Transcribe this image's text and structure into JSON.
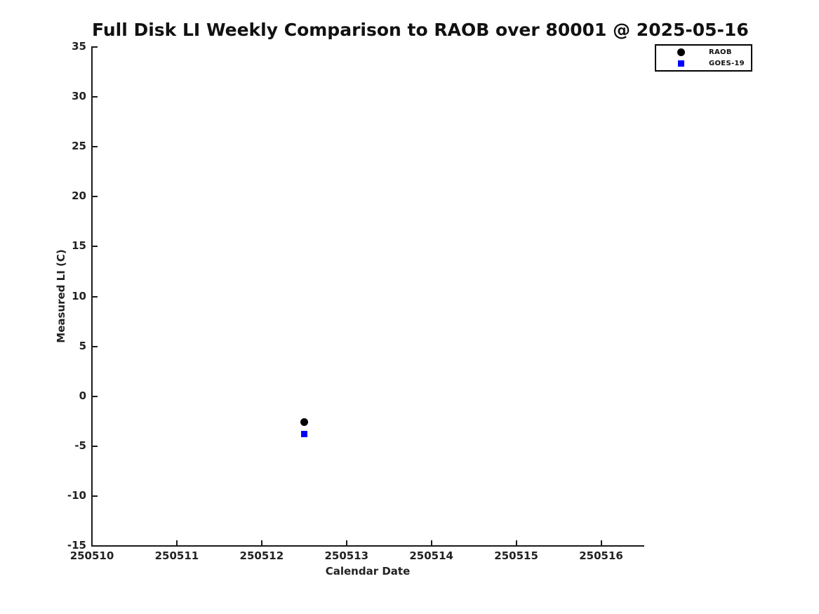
{
  "figure": {
    "background": "#ffffff",
    "text_color": "#1a1a1a"
  },
  "chart_data": {
    "type": "scatter",
    "title": "Full Disk LI Weekly Comparison to RAOB over 80001 @ 2025-05-16",
    "xlabel": "Calendar Date",
    "ylabel": "Measured LI (C)",
    "xlim": [
      250510,
      250516.5
    ],
    "ylim": [
      -15,
      35
    ],
    "xticks": [
      250510,
      250511,
      250512,
      250513,
      250514,
      250515,
      250516
    ],
    "yticks": [
      35,
      30,
      25,
      20,
      15,
      10,
      5,
      0,
      -5,
      -10,
      -15
    ],
    "grid": false,
    "legend": {
      "position": "top-right-outside",
      "entries": [
        "RAOB",
        "GOES-19"
      ]
    },
    "series": [
      {
        "name": "RAOB",
        "marker": "circle",
        "color": "#000000",
        "points": [
          {
            "x": 250512.5,
            "y": -2.6
          }
        ]
      },
      {
        "name": "GOES-19",
        "marker": "square",
        "color": "#0000ff",
        "points": [
          {
            "x": 250512.5,
            "y": -3.8
          }
        ]
      }
    ]
  }
}
